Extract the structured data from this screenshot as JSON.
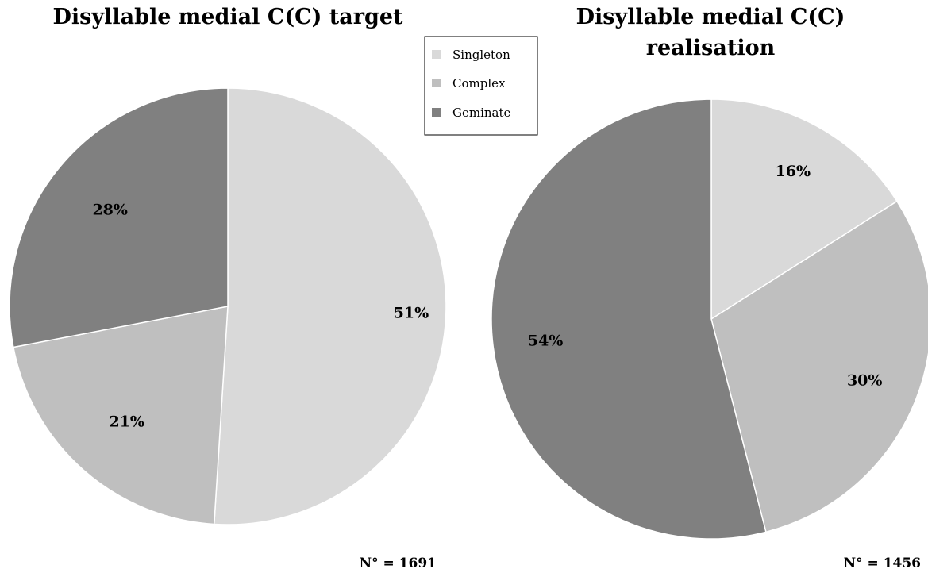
{
  "legend": {
    "placement": "top-center",
    "items": [
      {
        "label": "Singleton",
        "color": "#d9d9d9"
      },
      {
        "label": "Complex",
        "color": "#bfbfbf"
      },
      {
        "label": "Geminate",
        "color": "#808080"
      }
    ]
  },
  "chart_data": [
    {
      "type": "pie",
      "title_lines": [
        "Disyllable medial C(C) target"
      ],
      "n_label": "N° = 1691",
      "slices": [
        {
          "name": "Singleton",
          "value": 51,
          "label": "51%",
          "color": "#d9d9d9"
        },
        {
          "name": "Complex",
          "value": 21,
          "label": "21%",
          "color": "#bfbfbf"
        },
        {
          "name": "Geminate",
          "value": 28,
          "label": "28%",
          "color": "#808080"
        }
      ]
    },
    {
      "type": "pie",
      "title_lines": [
        "Disyllable medial C(C)",
        "realisation"
      ],
      "n_label": "N° = 1456",
      "slices": [
        {
          "name": "Singleton",
          "value": 16,
          "label": "16%",
          "color": "#d9d9d9"
        },
        {
          "name": "Complex",
          "value": 30,
          "label": "30%",
          "color": "#bfbfbf"
        },
        {
          "name": "Geminate",
          "value": 54,
          "label": "54%",
          "color": "#808080"
        }
      ]
    }
  ]
}
